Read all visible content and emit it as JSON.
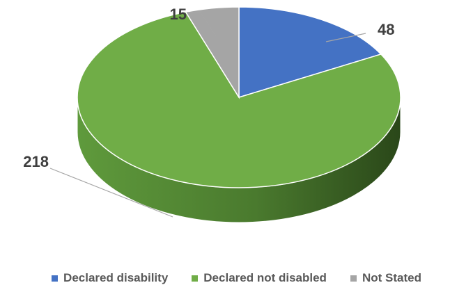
{
  "chart_data": {
    "type": "pie",
    "style": "3d",
    "categories": [
      "Declared disability",
      "Declared not disabled",
      "Not Stated"
    ],
    "values": [
      48,
      218,
      15
    ],
    "colors": [
      "#4472C4",
      "#70AD47",
      "#A5A5A5"
    ],
    "data_labels": [
      "48",
      "218",
      "15"
    ],
    "legend": {
      "position": "bottom",
      "entries": [
        "Declared disability",
        "Declared not disabled",
        "Not Stated"
      ]
    }
  }
}
